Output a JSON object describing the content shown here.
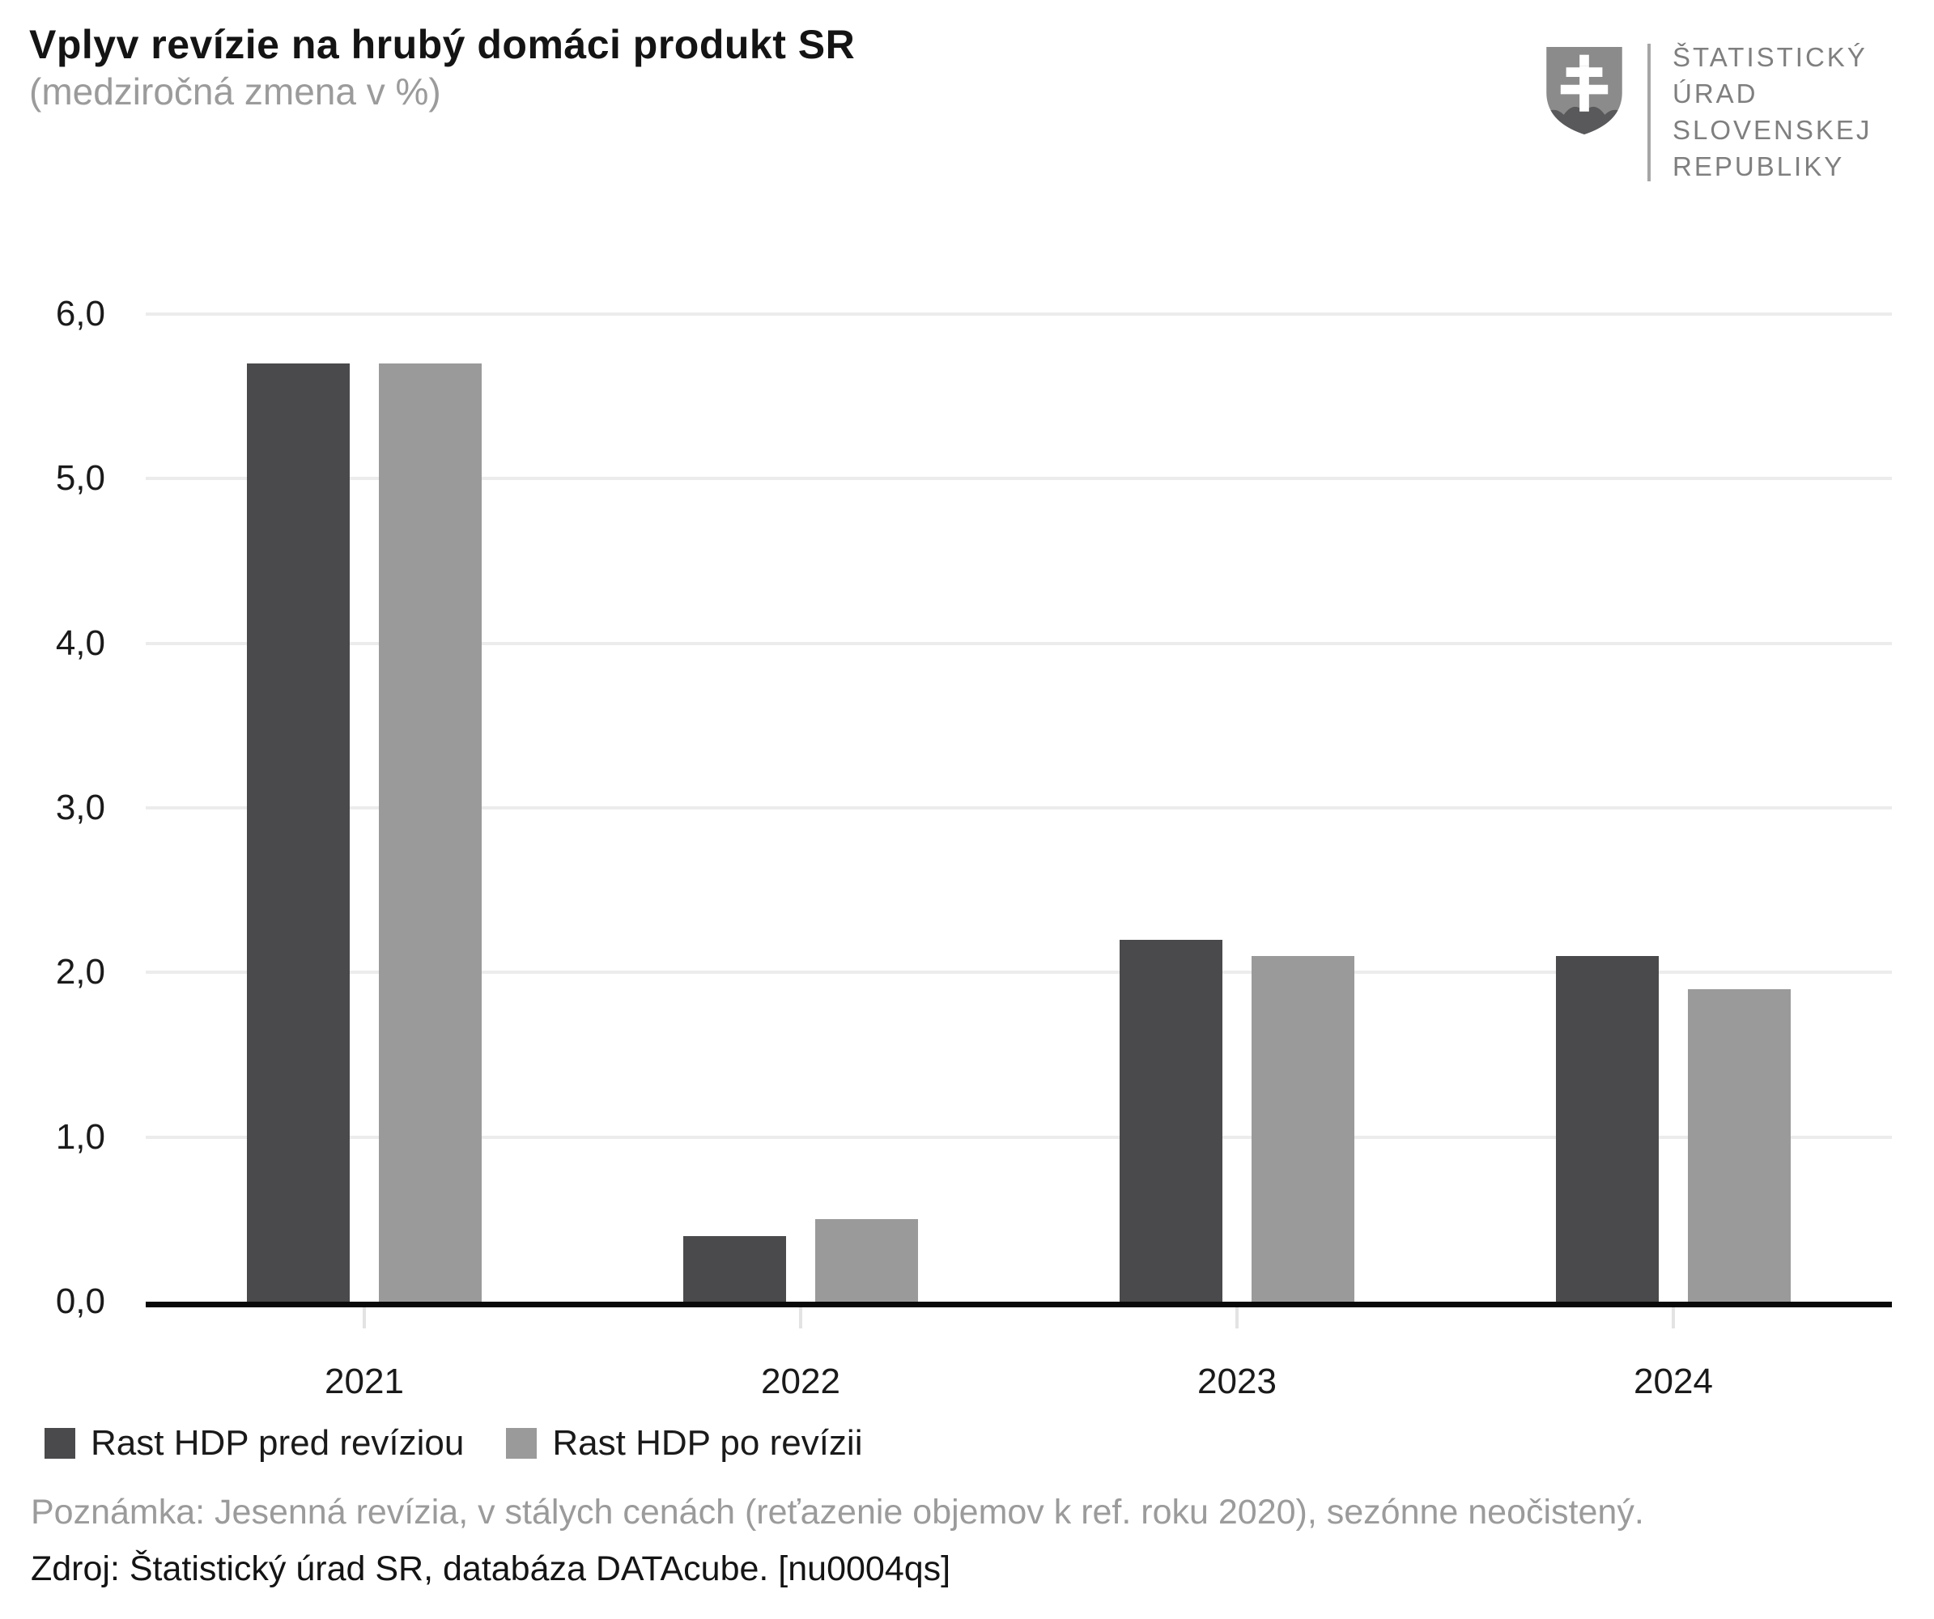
{
  "header": {
    "title": "Vplyv revízie na hrubý domáci produkt SR",
    "subtitle": "(medziročná zmena v %)"
  },
  "logo": {
    "org_name_lines": [
      "ŠTATISTICKÝ",
      "ÚRAD",
      "SLOVENSKEJ",
      "REPUBLIKY"
    ]
  },
  "chart_data": {
    "type": "bar",
    "title": "Vplyv revízie na hrubý domáci produkt SR",
    "subtitle": "(medziročná zmena v %)",
    "categories": [
      "2021",
      "2022",
      "2023",
      "2024"
    ],
    "series": [
      {
        "name": "Rast HDP pred revíziou",
        "slug": "pred-reviziou",
        "color": "#4a4a4c",
        "values": [
          5.7,
          0.4,
          2.2,
          2.1
        ]
      },
      {
        "name": "Rast HDP po revízii",
        "slug": "po-revizii",
        "color": "#9a9a9a",
        "values": [
          5.7,
          0.5,
          2.1,
          1.9
        ]
      }
    ],
    "xlabel": "",
    "ylabel": "",
    "ylim": [
      0,
      6
    ],
    "ytick_step": 1.0,
    "ytick_labels": [
      "0,0",
      "1,0",
      "2,0",
      "3,0",
      "4,0",
      "5,0",
      "6,0"
    ],
    "decimal_separator": ",",
    "grid": "horizontal",
    "legend_position": "bottom-left"
  },
  "footer": {
    "note": "Poznámka: Jesenná revízia, v stálych cenách (reťazenie objemov k ref. roku 2020), sezónne neočistený.",
    "source": "Zdroj: Štatistický úrad SR, databáza DATAcube. [nu0004qs]"
  },
  "colors": {
    "bar_before_revision": "#4a4a4c",
    "bar_after_revision": "#9a9a9a",
    "gridline": "#ececec",
    "axis": "#0a0a0a",
    "subtitle_gray": "#9b9b9b",
    "logo_gray": "#8b8b8b",
    "logo_hills_gray": "#59595b"
  }
}
